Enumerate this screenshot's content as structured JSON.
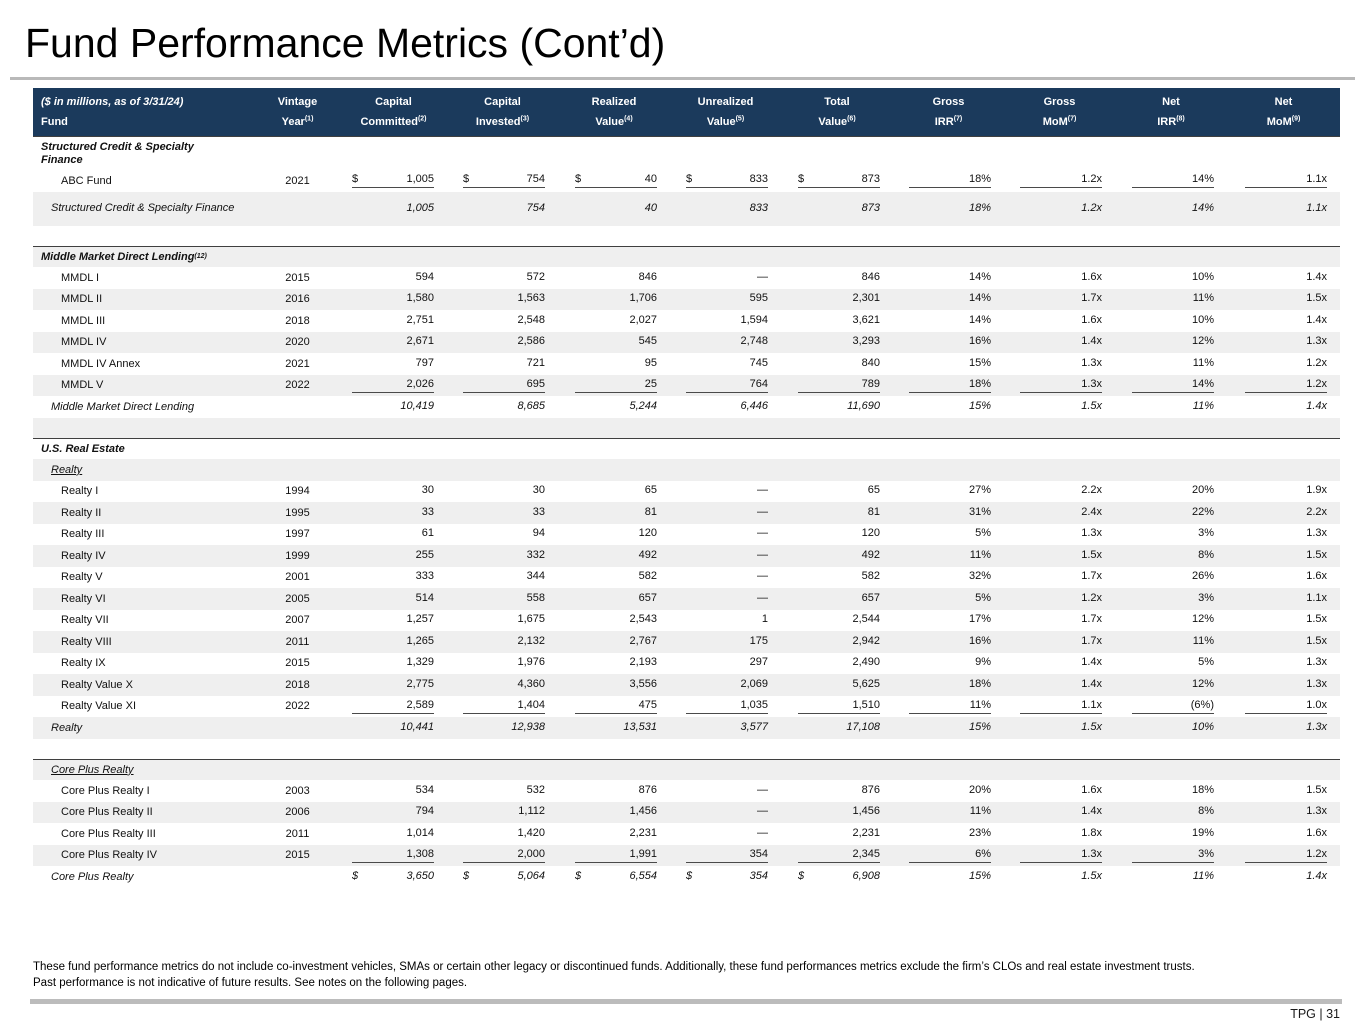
{
  "title": "Fund Performance Metrics (Cont’d)",
  "page_footer": {
    "label": "TPG | 31"
  },
  "footnotes": {
    "line1": "These fund performance metrics do not include co-investment vehicles, SMAs or certain other legacy or discontinued funds. Additionally, these fund performances metrics exclude the firm’s CLOs and real estate investment trusts.",
    "line2": "Past performance is not indicative of future results. See notes on the following pages."
  },
  "table": {
    "header": {
      "col0_line1": "($ in millions, as of 3/31/24)",
      "col0_line2": "Fund",
      "columns": [
        {
          "l1": "Vintage",
          "l2": "Year",
          "sup": "(1)"
        },
        {
          "l1": "Capital",
          "l2": "Committed",
          "sup": "(2)"
        },
        {
          "l1": "Capital",
          "l2": "Invested",
          "sup": "(3)"
        },
        {
          "l1": "Realized",
          "l2": "Value",
          "sup": "(4)"
        },
        {
          "l1": "Unrealized",
          "l2": "Value",
          "sup": "(5)"
        },
        {
          "l1": "Total",
          "l2": "Value",
          "sup": "(6)"
        },
        {
          "l1": "Gross",
          "l2": "IRR",
          "sup": "(7)"
        },
        {
          "l1": "Gross",
          "l2": "MoM",
          "sup": "(7)"
        },
        {
          "l1": "Net",
          "l2": "IRR",
          "sup": "(8)"
        },
        {
          "l1": "Net",
          "l2": "MoM",
          "sup": "(9)"
        }
      ]
    },
    "rows": [
      {
        "type": "section",
        "label": "Structured Credit & Specialty Finance",
        "two_line": true,
        "shade": false,
        "topline": true
      },
      {
        "type": "data",
        "label": "ABC Fund",
        "vintage": "2021",
        "values": [
          "1,005",
          "754",
          "40",
          "833",
          "873",
          "18%",
          "1.2x",
          "14%",
          "1.1x"
        ],
        "dollar": true,
        "rule": true,
        "shade": false
      },
      {
        "type": "total",
        "label": "Structured Credit & Specialty Finance",
        "two_line": true,
        "values": [
          "1,005",
          "754",
          "40",
          "833",
          "873",
          "18%",
          "1.2x",
          "14%",
          "1.1x"
        ],
        "shade": true
      },
      {
        "type": "spacer",
        "shade": false
      },
      {
        "type": "section",
        "label": "Middle Market Direct Lending",
        "sup": "(12)",
        "shade": true,
        "topline": true
      },
      {
        "type": "data",
        "label": "MMDL I",
        "vintage": "2015",
        "values": [
          "594",
          "572",
          "846",
          "—",
          "846",
          "14%",
          "1.6x",
          "10%",
          "1.4x"
        ],
        "shade": false
      },
      {
        "type": "data",
        "label": "MMDL II",
        "vintage": "2016",
        "values": [
          "1,580",
          "1,563",
          "1,706",
          "595",
          "2,301",
          "14%",
          "1.7x",
          "11%",
          "1.5x"
        ],
        "shade": true
      },
      {
        "type": "data",
        "label": "MMDL III",
        "vintage": "2018",
        "values": [
          "2,751",
          "2,548",
          "2,027",
          "1,594",
          "3,621",
          "14%",
          "1.6x",
          "10%",
          "1.4x"
        ],
        "shade": false
      },
      {
        "type": "data",
        "label": "MMDL IV",
        "vintage": "2020",
        "values": [
          "2,671",
          "2,586",
          "545",
          "2,748",
          "3,293",
          "16%",
          "1.4x",
          "12%",
          "1.3x"
        ],
        "shade": true
      },
      {
        "type": "data",
        "label": "MMDL IV Annex",
        "vintage": "2021",
        "values": [
          "797",
          "721",
          "95",
          "745",
          "840",
          "15%",
          "1.3x",
          "11%",
          "1.2x"
        ],
        "shade": false
      },
      {
        "type": "data",
        "label": "MMDL V",
        "vintage": "2022",
        "values": [
          "2,026",
          "695",
          "25",
          "764",
          "789",
          "18%",
          "1.3x",
          "14%",
          "1.2x"
        ],
        "rule": true,
        "shade": true
      },
      {
        "type": "total",
        "label": "Middle Market Direct Lending",
        "values": [
          "10,419",
          "8,685",
          "5,244",
          "6,446",
          "11,690",
          "15%",
          "1.5x",
          "11%",
          "1.4x"
        ],
        "shade": false
      },
      {
        "type": "spacer",
        "shade": true
      },
      {
        "type": "section",
        "label": "U.S. Real Estate",
        "shade": false,
        "topline": true
      },
      {
        "type": "subsection",
        "label": "Realty",
        "shade": true
      },
      {
        "type": "data",
        "label": "Realty I",
        "vintage": "1994",
        "values": [
          "30",
          "30",
          "65",
          "—",
          "65",
          "27%",
          "2.2x",
          "20%",
          "1.9x"
        ],
        "shade": false
      },
      {
        "type": "data",
        "label": "Realty II",
        "vintage": "1995",
        "values": [
          "33",
          "33",
          "81",
          "—",
          "81",
          "31%",
          "2.4x",
          "22%",
          "2.2x"
        ],
        "shade": true
      },
      {
        "type": "data",
        "label": "Realty III",
        "vintage": "1997",
        "values": [
          "61",
          "94",
          "120",
          "—",
          "120",
          "5%",
          "1.3x",
          "3%",
          "1.3x"
        ],
        "shade": false
      },
      {
        "type": "data",
        "label": "Realty IV",
        "vintage": "1999",
        "values": [
          "255",
          "332",
          "492",
          "—",
          "492",
          "11%",
          "1.5x",
          "8%",
          "1.5x"
        ],
        "shade": true
      },
      {
        "type": "data",
        "label": "Realty V",
        "vintage": "2001",
        "values": [
          "333",
          "344",
          "582",
          "—",
          "582",
          "32%",
          "1.7x",
          "26%",
          "1.6x"
        ],
        "shade": false
      },
      {
        "type": "data",
        "label": "Realty VI",
        "vintage": "2005",
        "values": [
          "514",
          "558",
          "657",
          "—",
          "657",
          "5%",
          "1.2x",
          "3%",
          "1.1x"
        ],
        "shade": true
      },
      {
        "type": "data",
        "label": "Realty VII",
        "vintage": "2007",
        "values": [
          "1,257",
          "1,675",
          "2,543",
          "1",
          "2,544",
          "17%",
          "1.7x",
          "12%",
          "1.5x"
        ],
        "shade": false
      },
      {
        "type": "data",
        "label": "Realty VIII",
        "vintage": "2011",
        "values": [
          "1,265",
          "2,132",
          "2,767",
          "175",
          "2,942",
          "16%",
          "1.7x",
          "11%",
          "1.5x"
        ],
        "shade": true
      },
      {
        "type": "data",
        "label": "Realty IX",
        "vintage": "2015",
        "values": [
          "1,329",
          "1,976",
          "2,193",
          "297",
          "2,490",
          "9%",
          "1.4x",
          "5%",
          "1.3x"
        ],
        "shade": false
      },
      {
        "type": "data",
        "label": "Realty Value X",
        "vintage": "2018",
        "values": [
          "2,775",
          "4,360",
          "3,556",
          "2,069",
          "5,625",
          "18%",
          "1.4x",
          "12%",
          "1.3x"
        ],
        "shade": true
      },
      {
        "type": "data",
        "label": "Realty Value XI",
        "vintage": "2022",
        "values": [
          "2,589",
          "1,404",
          "475",
          "1,035",
          "1,510",
          "11%",
          "1.1x",
          "(6%)",
          "1.0x"
        ],
        "rule": true,
        "shade": false
      },
      {
        "type": "total",
        "label": "Realty",
        "values": [
          "10,441",
          "12,938",
          "13,531",
          "3,577",
          "17,108",
          "15%",
          "1.5x",
          "10%",
          "1.3x"
        ],
        "shade": true
      },
      {
        "type": "spacer",
        "shade": false
      },
      {
        "type": "subsection",
        "label": "Core Plus Realty",
        "shade": true,
        "topline": true
      },
      {
        "type": "data",
        "label": "Core Plus Realty I",
        "vintage": "2003",
        "values": [
          "534",
          "532",
          "876",
          "—",
          "876",
          "20%",
          "1.6x",
          "18%",
          "1.5x"
        ],
        "shade": false
      },
      {
        "type": "data",
        "label": "Core Plus Realty II",
        "vintage": "2006",
        "values": [
          "794",
          "1,112",
          "1,456",
          "—",
          "1,456",
          "11%",
          "1.4x",
          "8%",
          "1.3x"
        ],
        "shade": true
      },
      {
        "type": "data",
        "label": "Core Plus Realty III",
        "vintage": "2011",
        "values": [
          "1,014",
          "1,420",
          "2,231",
          "—",
          "2,231",
          "23%",
          "1.8x",
          "19%",
          "1.6x"
        ],
        "shade": false
      },
      {
        "type": "data",
        "label": "Core Plus Realty IV",
        "vintage": "2015",
        "values": [
          "1,308",
          "2,000",
          "1,991",
          "354",
          "2,345",
          "6%",
          "1.3x",
          "3%",
          "1.2x"
        ],
        "rule": true,
        "shade": true
      },
      {
        "type": "total",
        "label": "Core Plus Realty",
        "values": [
          "3,650",
          "5,064",
          "6,554",
          "354",
          "6,908",
          "15%",
          "1.5x",
          "11%",
          "1.4x"
        ],
        "dollar": true,
        "shade": false
      }
    ]
  }
}
